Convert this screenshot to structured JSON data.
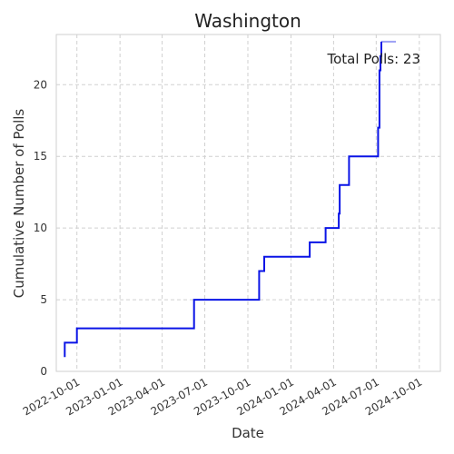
{
  "chart_data": {
    "type": "line",
    "step": true,
    "title": "Washington",
    "xlabel": "Date",
    "ylabel": "Cumulative Number of Polls",
    "annotation": "Total Polls: 23",
    "grid": true,
    "x_type": "date",
    "xlim": [
      "2022-08-18",
      "2024-11-15"
    ],
    "ylim": [
      0,
      23.5
    ],
    "x_ticks": [
      "2022-10-01",
      "2023-01-01",
      "2023-04-01",
      "2023-07-01",
      "2023-10-01",
      "2024-01-01",
      "2024-04-01",
      "2024-07-01",
      "2024-10-01"
    ],
    "y_ticks": [
      0,
      5,
      10,
      15,
      20
    ],
    "series": [
      {
        "color": "#0a14e6",
        "points": [
          {
            "x": "2022-09-05",
            "y": 1
          },
          {
            "x": "2022-09-05",
            "y": 2
          },
          {
            "x": "2022-10-01",
            "y": 3
          },
          {
            "x": "2023-06-08",
            "y": 5
          },
          {
            "x": "2023-10-25",
            "y": 7
          },
          {
            "x": "2023-11-05",
            "y": 8
          },
          {
            "x": "2024-02-10",
            "y": 9
          },
          {
            "x": "2024-03-15",
            "y": 10
          },
          {
            "x": "2024-04-12",
            "y": 11
          },
          {
            "x": "2024-04-14",
            "y": 13
          },
          {
            "x": "2024-05-04",
            "y": 15
          },
          {
            "x": "2024-07-05",
            "y": 17
          },
          {
            "x": "2024-07-08",
            "y": 21
          },
          {
            "x": "2024-07-10",
            "y": 22
          },
          {
            "x": "2024-07-12",
            "y": 23
          },
          {
            "x": "2024-08-12",
            "y": 23
          }
        ]
      }
    ]
  }
}
